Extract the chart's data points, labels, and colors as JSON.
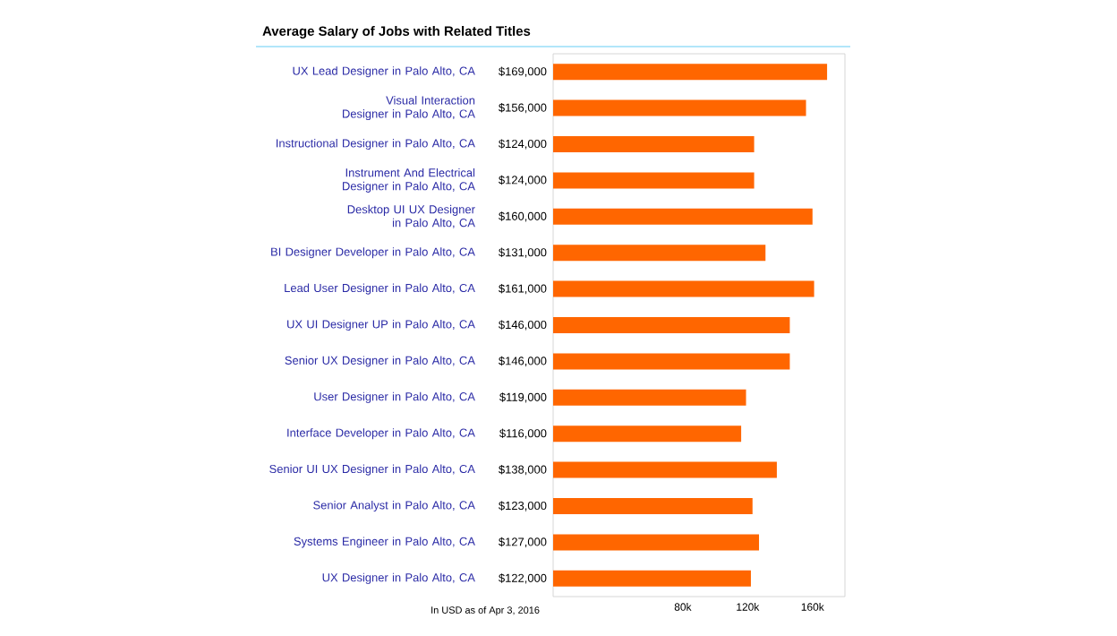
{
  "chart_data": {
    "type": "bar",
    "orientation": "horizontal",
    "title": "Average Salary of Jobs with Related Titles",
    "categories": [
      "UX Lead Designer in Palo Alto, CA",
      "Visual Interaction Designer in Palo Alto, CA",
      "Instructional Designer in Palo Alto, CA",
      "Instrument And Electrical Designer in Palo Alto, CA",
      "Desktop UI UX Designer in Palo Alto, CA",
      "BI Designer Developer in Palo Alto, CA",
      "Lead User Designer in Palo Alto, CA",
      "UX UI Designer UP in Palo Alto, CA",
      "Senior UX Designer in Palo Alto, CA",
      "User Designer in Palo Alto, CA",
      "Interface Developer in Palo Alto, CA",
      "Senior UI UX Designer in Palo Alto, CA",
      "Senior Analyst in Palo Alto, CA",
      "Systems Engineer in Palo Alto, CA",
      "UX Designer in Palo Alto, CA"
    ],
    "values": [
      169000,
      156000,
      124000,
      124000,
      160000,
      131000,
      161000,
      146000,
      146000,
      119000,
      116000,
      138000,
      123000,
      127000,
      122000
    ],
    "value_labels": [
      "$169,000",
      "$156,000",
      "$124,000",
      "$124,000",
      "$160,000",
      "$131,000",
      "$161,000",
      "$146,000",
      "$146,000",
      "$119,000",
      "$116,000",
      "$138,000",
      "$123,000",
      "$127,000",
      "$122,000"
    ],
    "color": "#ff6600",
    "xlim": [
      0,
      180000
    ],
    "xticks": [
      {
        "value": 80000,
        "label": "80k"
      },
      {
        "value": 120000,
        "label": "120k"
      },
      {
        "value": 160000,
        "label": "160k"
      }
    ],
    "annotations": [
      "In USD as of Apr 3, 2016"
    ]
  }
}
